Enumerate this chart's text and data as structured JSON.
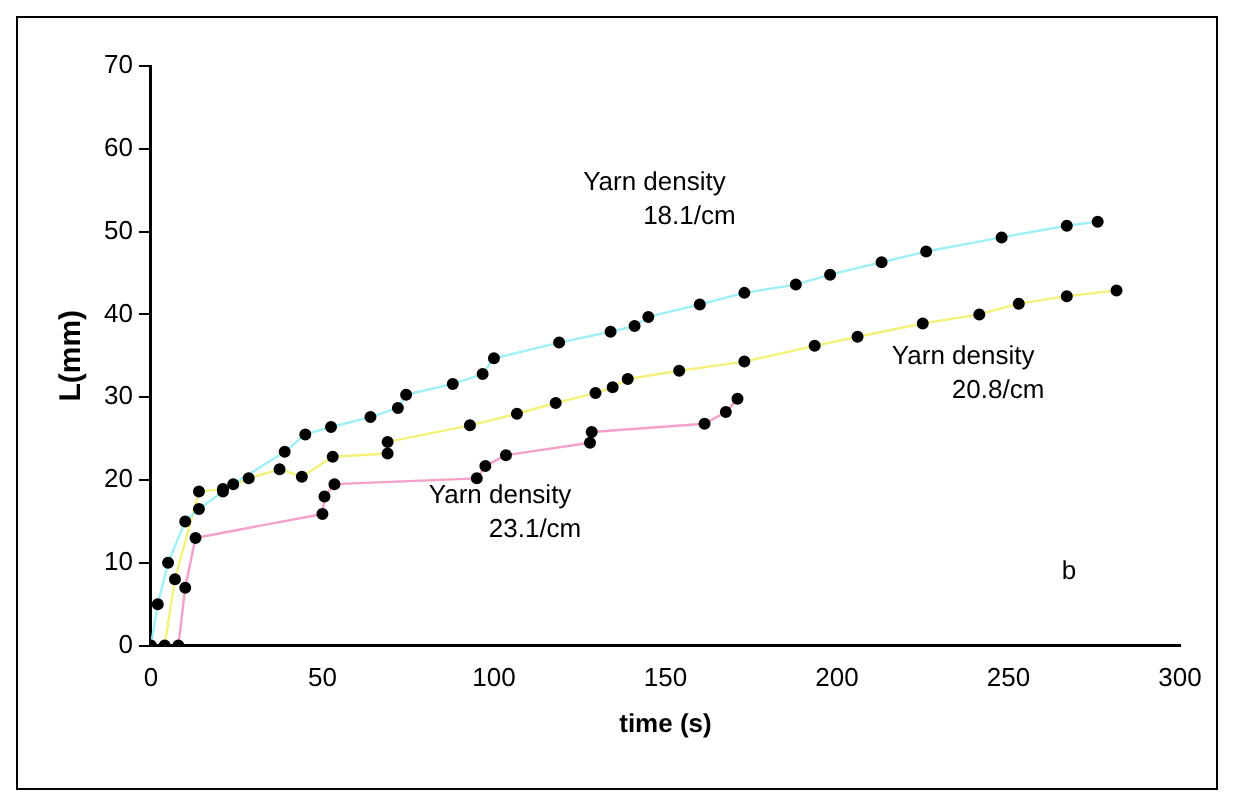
{
  "chart_data": {
    "type": "line",
    "xlabel": "time (s)",
    "ylabel": "L(mm)",
    "xlim": [
      0,
      300
    ],
    "xticks": [
      0,
      50,
      100,
      150,
      200,
      250,
      300
    ],
    "ylim": [
      0,
      70
    ],
    "yticks": [
      0,
      10,
      20,
      30,
      40,
      50,
      60,
      70
    ],
    "grid": false,
    "legend": false,
    "annotations": [
      "b"
    ],
    "series": [
      {
        "name": "Yarn density 18.1/cm",
        "color": "#9ff0f5",
        "marker": "none",
        "x": [
          0,
          2,
          5,
          10,
          14,
          21,
          24,
          39,
          45,
          52.5,
          64,
          72,
          74.4,
          88,
          96.7,
          100,
          119,
          134,
          141,
          145,
          160,
          173,
          188,
          198,
          213,
          226,
          248,
          267,
          276
        ],
        "values": [
          0,
          5,
          10,
          15,
          16.5,
          18.6,
          19.5,
          23.4,
          25.5,
          26.4,
          27.6,
          28.7,
          30.3,
          31.6,
          32.8,
          34.7,
          36.6,
          37.9,
          38.6,
          39.7,
          41.2,
          42.6,
          43.6,
          44.8,
          46.3,
          47.6,
          49.3,
          50.7,
          51.2
        ]
      },
      {
        "name": "Yarn density 20.8/cm",
        "color": "#f5f07a",
        "marker": "none",
        "x": [
          4,
          7,
          14,
          21,
          28.5,
          37.5,
          44,
          53,
          69,
          69,
          93,
          106.7,
          118,
          129.6,
          134.6,
          139,
          154,
          173,
          193.5,
          206,
          225,
          241.5,
          253,
          267,
          281.5
        ],
        "values": [
          0,
          8,
          18.6,
          18.9,
          20.2,
          21.3,
          20.4,
          22.8,
          23.2,
          24.6,
          26.6,
          28,
          29.3,
          30.5,
          31.2,
          32.2,
          33.2,
          34.3,
          36.2,
          37.3,
          38.9,
          40,
          41.3,
          42.2,
          42.9
        ]
      },
      {
        "name": "Yarn density 23.1/cm",
        "color": "#f5a0c8",
        "marker": "none",
        "x": [
          8,
          10,
          13,
          50,
          50.6,
          53.5,
          95,
          97.5,
          103.5,
          128,
          128.5,
          161.4,
          167.6,
          171
        ],
        "values": [
          0,
          7,
          13,
          15.9,
          18,
          19.5,
          20.2,
          21.7,
          23,
          24.5,
          25.8,
          26.8,
          28.2,
          29.8
        ]
      },
      {
        "type": "scatter",
        "color": "#000000",
        "marker": "circle",
        "x": [
          0,
          2,
          5,
          10,
          14,
          21,
          24,
          39,
          45,
          52.5,
          64,
          72,
          74.4,
          88,
          96.7,
          100,
          119,
          134,
          141,
          145,
          160,
          173,
          188,
          198,
          213,
          226,
          248,
          267,
          276
        ],
        "values": [
          0,
          5,
          10,
          15,
          16.5,
          18.6,
          19.5,
          23.4,
          25.5,
          26.4,
          27.6,
          28.7,
          30.3,
          31.6,
          32.8,
          34.7,
          36.6,
          37.9,
          38.6,
          39.7,
          41.2,
          42.6,
          43.6,
          44.8,
          46.3,
          47.6,
          49.3,
          50.7,
          51.2
        ]
      },
      {
        "type": "scatter",
        "color": "#000000",
        "marker": "circle",
        "x": [
          4,
          7,
          14,
          21,
          28.5,
          37.5,
          44,
          53,
          69,
          69,
          93,
          106.7,
          118,
          129.6,
          134.6,
          139,
          154,
          173,
          193.5,
          206,
          225,
          241.5,
          253,
          267,
          281.5
        ],
        "values": [
          0,
          8,
          18.6,
          18.9,
          20.2,
          21.3,
          20.4,
          22.8,
          23.2,
          24.6,
          26.6,
          28,
          29.3,
          30.5,
          31.2,
          32.2,
          33.2,
          34.3,
          36.2,
          37.3,
          38.9,
          40,
          41.3,
          42.2,
          42.9
        ]
      },
      {
        "type": "scatter",
        "color": "#000000",
        "marker": "circle",
        "x": [
          8,
          10,
          13,
          50,
          50.6,
          53.5,
          95,
          97.5,
          103.5,
          128,
          128.5,
          161.4,
          167.6,
          171
        ],
        "values": [
          0,
          7,
          13,
          15.9,
          18,
          19.5,
          20.2,
          21.7,
          23,
          24.5,
          25.8,
          26.8,
          28.2,
          29.8
        ]
      }
    ]
  }
}
